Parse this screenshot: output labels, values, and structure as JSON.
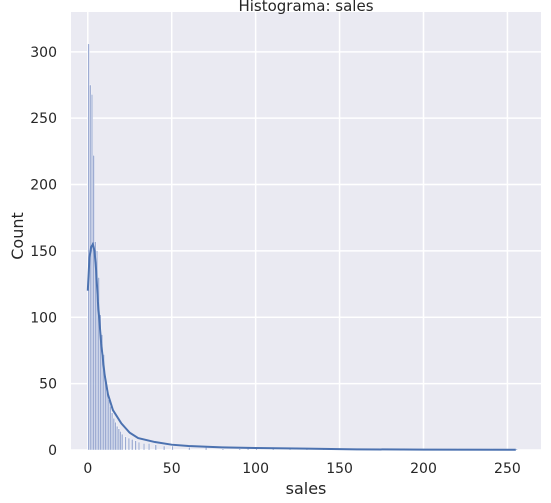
{
  "chart_data": {
    "type": "bar",
    "title": "Histograma: sales",
    "xlabel": "sales",
    "ylabel": "Count",
    "xlim": [
      -10,
      270
    ],
    "ylim": [
      0,
      330
    ],
    "xticks": [
      0,
      50,
      100,
      150,
      200,
      250
    ],
    "yticks": [
      0,
      50,
      100,
      150,
      200,
      250,
      300
    ],
    "grid": true,
    "bin_width": 1,
    "bins_x": [
      0,
      1,
      2,
      3,
      4,
      5,
      6,
      7,
      8,
      9,
      10,
      11,
      12,
      13,
      14,
      15,
      16,
      17,
      18,
      19,
      20,
      22,
      24,
      26,
      28,
      30,
      33,
      36,
      40,
      45,
      50,
      60,
      70,
      80,
      90,
      95,
      100,
      110,
      120,
      130,
      140,
      150,
      160,
      180,
      200,
      220,
      240,
      255
    ],
    "counts": [
      306,
      275,
      268,
      222,
      157,
      150,
      130,
      102,
      87,
      72,
      56,
      46,
      38,
      33,
      28,
      24,
      21,
      18,
      16,
      14,
      12,
      10,
      9,
      8,
      7,
      6,
      5,
      5,
      4,
      3,
      3,
      2,
      2,
      1,
      1,
      2,
      1,
      1,
      1,
      1,
      1,
      1,
      1,
      1,
      1,
      1,
      1,
      1
    ],
    "kde_x": [
      0,
      1,
      2,
      3,
      4,
      5,
      6,
      8,
      10,
      12,
      15,
      20,
      25,
      30,
      40,
      50,
      60,
      80,
      100,
      130,
      160,
      200,
      255
    ],
    "kde_y": [
      120,
      145,
      153,
      155,
      150,
      135,
      112,
      80,
      57,
      42,
      30,
      20,
      13,
      9,
      6,
      4,
      3,
      2,
      1.5,
      1,
      0.5,
      0.3,
      0.2
    ],
    "hist_color": "#8ea0cc",
    "kde_color": "#4c72b0",
    "background_color": "#eaeaf2",
    "grid_color": "#ffffff"
  }
}
